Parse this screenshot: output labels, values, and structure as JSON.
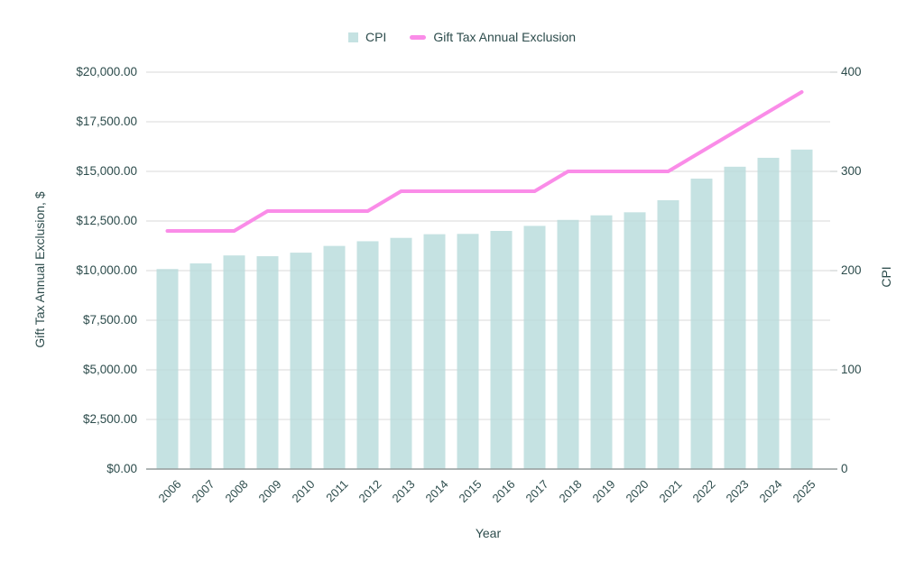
{
  "legend": {
    "items": [
      {
        "label": "CPI",
        "marker": "square",
        "color": "#c5e2e2"
      },
      {
        "label": "Gift Tax Annual Exclusion",
        "marker": "dash",
        "color": "#fa8ce8"
      }
    ]
  },
  "colors": {
    "bar": "#c5e2e2",
    "line": "#fa8ce8",
    "gridline": "#e2e2e2",
    "gridline_overlay": "rgba(110,110,110,0.08)",
    "baseline": "#949b9b",
    "text": "#2d4c4c"
  },
  "chart_data": {
    "type": "combo-bar-line",
    "title": "",
    "xlabel": "Year",
    "ylabel_left": "Gift Tax Annual Exclusion, $",
    "ylabel_right": "CPI",
    "ylim_left": [
      0,
      20000
    ],
    "ylim_right": [
      0,
      400
    ],
    "grid": true,
    "legend_position": "top",
    "categories": [
      "2006",
      "2007",
      "2008",
      "2009",
      "2010",
      "2011",
      "2012",
      "2013",
      "2014",
      "2015",
      "2016",
      "2017",
      "2018",
      "2019",
      "2020",
      "2021",
      "2022",
      "2023",
      "2024",
      "2025"
    ],
    "series": [
      {
        "name": "CPI",
        "type": "bar",
        "axis": "right",
        "color": "#c5e2e2",
        "values": [
          201.6,
          207.3,
          215.3,
          214.5,
          218.1,
          224.9,
          229.6,
          233.0,
          236.7,
          237.0,
          240.0,
          245.1,
          251.1,
          255.7,
          258.8,
          271.0,
          292.7,
          304.7,
          313.7,
          322.0
        ]
      },
      {
        "name": "Gift Tax Annual Exclusion",
        "type": "line",
        "axis": "left",
        "color": "#fa8ce8",
        "values": [
          12000,
          12000,
          12000,
          13000,
          13000,
          13000,
          13000,
          14000,
          14000,
          14000,
          14000,
          14000,
          15000,
          15000,
          15000,
          15000,
          16000,
          17000,
          18000,
          19000
        ]
      }
    ],
    "left_ticks": [
      {
        "value": 0,
        "label": "$0.00"
      },
      {
        "value": 2500,
        "label": "$2,500.00"
      },
      {
        "value": 5000,
        "label": "$5,000.00"
      },
      {
        "value": 7500,
        "label": "$7,500.00"
      },
      {
        "value": 10000,
        "label": "$10,000.00"
      },
      {
        "value": 12500,
        "label": "$12,500.00"
      },
      {
        "value": 15000,
        "label": "$15,000.00"
      },
      {
        "value": 17500,
        "label": "$17,500.00"
      },
      {
        "value": 20000,
        "label": "$20,000.00"
      }
    ],
    "right_ticks": [
      {
        "value": 0,
        "label": "0"
      },
      {
        "value": 100,
        "label": "100"
      },
      {
        "value": 200,
        "label": "200"
      },
      {
        "value": 300,
        "label": "300"
      },
      {
        "value": 400,
        "label": "400"
      }
    ]
  }
}
